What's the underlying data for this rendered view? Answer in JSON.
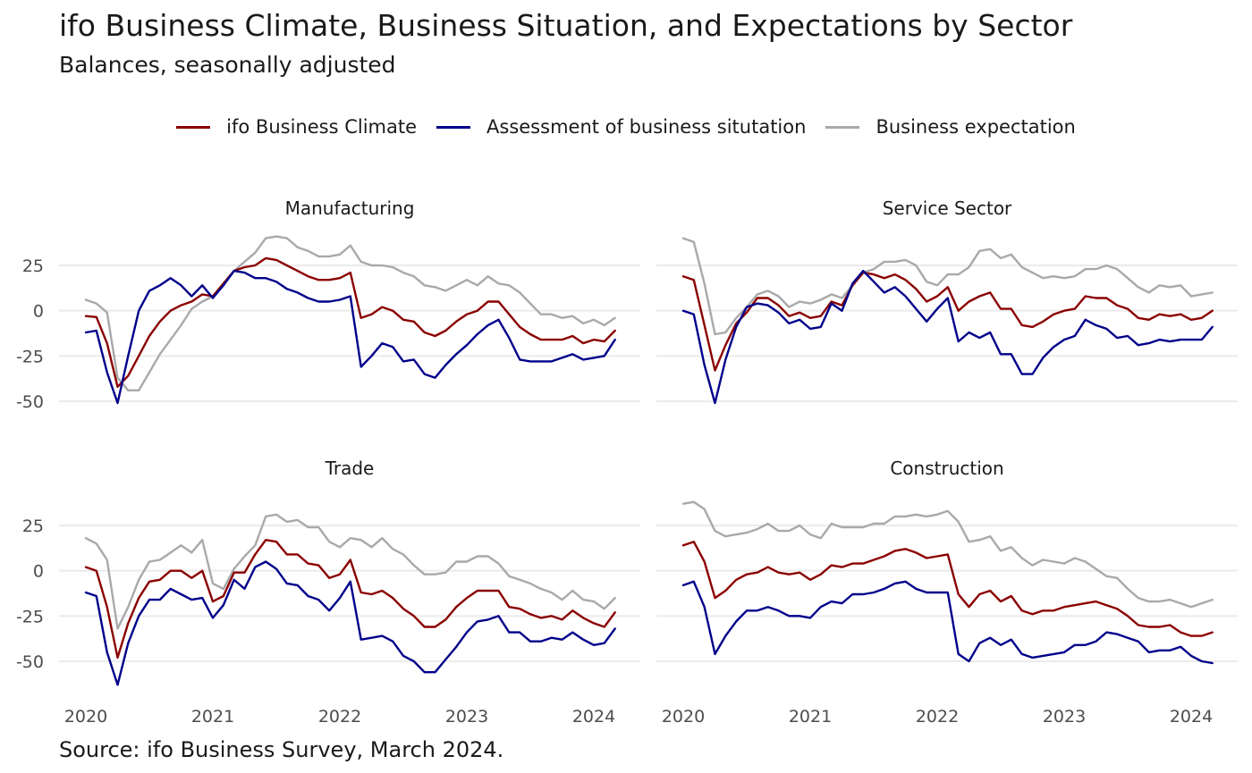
{
  "title": "ifo Business Climate, Business Situation, and Expectations by Sector",
  "subtitle": "Balances, seasonally adjusted",
  "caption": "Source: ifo Business Survey, March 2024.",
  "legend": [
    {
      "name": "ifo Business Climate",
      "color": "#8b0000"
    },
    {
      "name": "Assessment of business situtation",
      "color": "#00008b"
    },
    {
      "name": "Business expectation",
      "color": "#a9a9a9"
    }
  ],
  "chart_data": {
    "type": "line",
    "legend_position": "top",
    "grid": "horizontal",
    "x_start": "2020-01",
    "x_frequency": "monthly",
    "x_ticks": [
      "2020",
      "2021",
      "2022",
      "2023",
      "2024"
    ],
    "y_ticks": [
      "25",
      "0",
      "-25",
      "-50"
    ],
    "ylim": [
      -70,
      50
    ],
    "panels": [
      {
        "name": "Manufacturing",
        "series": [
          {
            "name": "ifo Business Climate",
            "values": [
              -3,
              -3.5,
              -18,
              -42,
              -36,
              -25,
              -14,
              -6,
              0,
              3,
              5,
              9,
              8,
              15,
              22,
              24,
              25,
              29,
              28,
              25,
              22,
              19,
              17,
              17,
              18,
              21,
              -4,
              -2,
              2,
              0,
              -5,
              -6,
              -12,
              -14,
              -11,
              -6,
              -2,
              0,
              5,
              5,
              -2,
              -9,
              -13,
              -16,
              -16,
              -16,
              -14,
              -18,
              -16,
              -17,
              -11
            ]
          },
          {
            "name": "Assessment of business situtation",
            "values": [
              -12,
              -11,
              -34,
              -51,
              -25,
              0,
              11,
              14,
              18,
              14,
              8,
              14,
              7,
              14,
              22,
              21,
              18,
              18,
              16,
              12,
              10,
              7,
              5,
              5,
              6,
              8,
              -31,
              -25,
              -18,
              -20,
              -28,
              -27,
              -35,
              -37,
              -30,
              -24,
              -19,
              -13,
              -8,
              -5,
              -15,
              -27,
              -28,
              -28,
              -28,
              -26,
              -24,
              -27,
              -26,
              -25,
              -16
            ]
          },
          {
            "name": "Business expectation",
            "values": [
              6,
              4,
              -1,
              -37,
              -44,
              -44,
              -34,
              -24,
              -16,
              -8,
              1,
              5,
              8,
              14,
              22,
              27,
              32,
              40,
              41,
              40,
              35,
              33,
              30,
              30,
              31,
              36,
              27,
              25,
              25,
              24,
              21,
              19,
              14,
              13,
              11,
              14,
              17,
              14,
              19,
              15,
              14,
              10,
              4,
              -2,
              -2,
              -4,
              -3,
              -7,
              -5,
              -8,
              -4
            ]
          }
        ]
      },
      {
        "name": "Service Sector",
        "series": [
          {
            "name": "ifo Business Climate",
            "values": [
              19,
              17,
              -8,
              -33,
              -19,
              -7,
              -1,
              7,
              7,
              3,
              -3,
              -1,
              -4,
              -3,
              5,
              3,
              14,
              21,
              20,
              18,
              20,
              17,
              12,
              5,
              8,
              13,
              0,
              5,
              8,
              10,
              1,
              1,
              -8,
              -9,
              -6,
              -2,
              0,
              1,
              8,
              7,
              7,
              3,
              1,
              -4,
              -5,
              -2,
              -3,
              -2,
              -5,
              -4,
              0
            ]
          },
          {
            "name": "Assessment of business situtation",
            "values": [
              0,
              -2,
              -30,
              -51,
              -27,
              -9,
              2,
              4,
              3,
              -1,
              -7,
              -5,
              -10,
              -9,
              4,
              0,
              15,
              22,
              16,
              10,
              13,
              8,
              1,
              -6,
              1,
              7,
              -17,
              -12,
              -15,
              -12,
              -24,
              -24,
              -35,
              -35,
              -26,
              -20,
              -16,
              -14,
              -5,
              -8,
              -10,
              -15,
              -14,
              -19,
              -18,
              -16,
              -17,
              -16,
              -16,
              -16,
              -9
            ]
          },
          {
            "name": "Business expectation",
            "values": [
              40,
              38,
              15,
              -13,
              -12,
              -4,
              2,
              9,
              11,
              8,
              2,
              5,
              4,
              6,
              9,
              7,
              14,
              21,
              23,
              27,
              27,
              28,
              25,
              16,
              14,
              20,
              20,
              24,
              33,
              34,
              29,
              31,
              24,
              21,
              18,
              19,
              18,
              19,
              23,
              23,
              25,
              23,
              18,
              13,
              10,
              14,
              13,
              14,
              8,
              9,
              10
            ]
          }
        ]
      },
      {
        "name": "Trade",
        "series": [
          {
            "name": "ifo Business Climate",
            "values": [
              2,
              0,
              -20,
              -48,
              -29,
              -15,
              -6,
              -5,
              0,
              0,
              -4,
              0,
              -17,
              -14,
              -1,
              -1,
              9,
              17,
              16,
              9,
              9,
              4,
              3,
              -4,
              -2,
              6,
              -12,
              -13,
              -11,
              -15,
              -21,
              -25,
              -31,
              -31,
              -27,
              -20,
              -15,
              -11,
              -11,
              -11,
              -20,
              -21,
              -24,
              -26,
              -25,
              -27,
              -22,
              -26,
              -29,
              -31,
              -23
            ]
          },
          {
            "name": "Assessment of business situtation",
            "values": [
              -12,
              -14,
              -45,
              -63,
              -40,
              -25,
              -16,
              -16,
              -10,
              -13,
              -16,
              -15,
              -26,
              -19,
              -5,
              -10,
              2,
              5,
              1,
              -7,
              -8,
              -14,
              -16,
              -22,
              -15,
              -6,
              -38,
              -37,
              -36,
              -39,
              -47,
              -50,
              -56,
              -56,
              -49,
              -42,
              -34,
              -28,
              -27,
              -25,
              -34,
              -34,
              -39,
              -39,
              -37,
              -38,
              -34,
              -38,
              -41,
              -40,
              -32
            ]
          },
          {
            "name": "Business expectation",
            "values": [
              18,
              15,
              6,
              -32,
              -20,
              -5,
              5,
              6,
              10,
              14,
              10,
              17,
              -7,
              -10,
              1,
              8,
              14,
              30,
              31,
              27,
              28,
              24,
              24,
              16,
              13,
              18,
              17,
              13,
              18,
              12,
              9,
              3,
              -2,
              -2,
              -1,
              5,
              5,
              8,
              8,
              4,
              -3,
              -5,
              -7,
              -10,
              -12,
              -16,
              -11,
              -16,
              -17,
              -21,
              -15
            ]
          }
        ]
      },
      {
        "name": "Construction",
        "series": [
          {
            "name": "ifo Business Climate",
            "values": [
              14,
              16,
              5,
              -15,
              -11,
              -5,
              -2,
              -1,
              2,
              -1,
              -2,
              -1,
              -5,
              -2,
              3,
              2,
              4,
              4,
              6,
              8,
              11,
              12,
              10,
              7,
              8,
              9,
              -13,
              -20,
              -13,
              -11,
              -17,
              -14,
              -22,
              -24,
              -22,
              -22,
              -20,
              -19,
              -18,
              -17,
              -19,
              -21,
              -25,
              -30,
              -31,
              -31,
              -30,
              -34,
              -36,
              -36,
              -34
            ]
          },
          {
            "name": "Assessment of business situtation",
            "values": [
              -8,
              -6,
              -20,
              -46,
              -36,
              -28,
              -22,
              -22,
              -20,
              -22,
              -25,
              -25,
              -26,
              -20,
              -17,
              -18,
              -13,
              -13,
              -12,
              -10,
              -7,
              -6,
              -10,
              -12,
              -12,
              -12,
              -46,
              -50,
              -40,
              -37,
              -41,
              -38,
              -46,
              -48,
              -47,
              -46,
              -45,
              -41,
              -41,
              -39,
              -34,
              -35,
              -37,
              -39,
              -45,
              -44,
              -44,
              -42,
              -47,
              -50,
              -51
            ]
          },
          {
            "name": "Business expectation",
            "values": [
              37,
              38,
              34,
              22,
              19,
              20,
              21,
              23,
              26,
              22,
              22,
              25,
              20,
              18,
              26,
              24,
              24,
              24,
              26,
              26,
              30,
              30,
              31,
              30,
              31,
              33,
              27,
              16,
              17,
              19,
              11,
              13,
              7,
              3,
              6,
              5,
              4,
              7,
              5,
              1,
              -3,
              -4,
              -10,
              -15,
              -17,
              -17,
              -16,
              -18,
              -20,
              -18,
              -16
            ]
          }
        ]
      }
    ]
  }
}
